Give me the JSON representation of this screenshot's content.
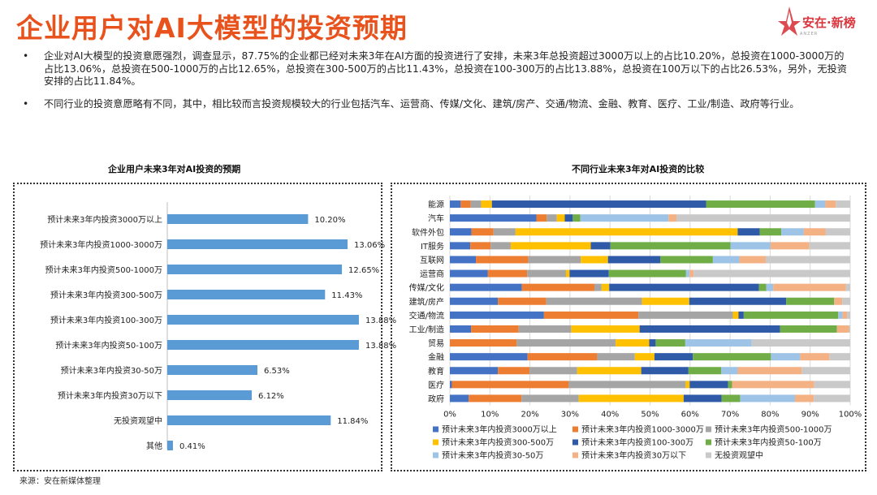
{
  "page": {
    "title": "企业用户对AI大模型的投资预期",
    "logo_text": "安在·新榜",
    "logo_sub": "ANZER",
    "source": "来源：安在新媒体整理"
  },
  "bullets": [
    "企业对AI大模型的投资意愿强烈，调查显示，87.75%的企业都已经对未来3年在AI方面的投资进行了安排，未来3年总投资超过3000万以上的占比10.20%，总投资在1000-3000万的占比13.06%，总投资在500-1000万的占比12.65%，总投资在300-500万的占比11.43%，总投资在100-300万的占比13.88%，总投资在100万以下的占比26.53%，另外，无投资安排的占比11.84%。",
    "不同行业的投资意愿略有不同，其中，相比较而言投资规模较大的行业包括汽车、运营商、传媒/文化、建筑/房产、交通/物流、金融、教育、医疗、工业/制造、政府等行业。"
  ],
  "colors": {
    "accent": "#e8531d",
    "bar_blue": "#5b9bd5",
    "series": [
      "#4472c4",
      "#ed7d31",
      "#a5a5a5",
      "#ffc000",
      "#2e5aa8",
      "#70ad47",
      "#9dc3e6",
      "#f4b183",
      "#c9c9c9"
    ]
  },
  "chart_data": [
    {
      "type": "bar",
      "orientation": "horizontal",
      "title": "企业用户未来3年对AI投资的预期",
      "categories": [
        "预计未来3年内投资3000万以上",
        "预计未来3年内投资1000-3000万",
        "预计未来3年内投资500-1000万",
        "预计未来3年内投资300-500万",
        "预计未来3年内投资100-300万",
        "预计未来3年内投资50-100万",
        "预计未来3年内投资30-50万",
        "预计未来3年内投资30万以下",
        "无投资观望中",
        "其他"
      ],
      "values": [
        10.2,
        13.06,
        12.65,
        11.43,
        13.88,
        13.88,
        6.53,
        6.12,
        11.84,
        0.41
      ],
      "labels": [
        "10.20%",
        "13.06%",
        "12.65%",
        "11.43%",
        "13.88%",
        "13.88%",
        "6.53%",
        "6.12%",
        "11.84%",
        "0.41%"
      ],
      "xlim": [
        0,
        20
      ]
    },
    {
      "type": "bar",
      "orientation": "horizontal",
      "stacked": "percent",
      "title": "不同行业未来3年对AI投资的比较",
      "categories": [
        "能源",
        "汽车",
        "软件外包",
        "IT服务",
        "互联网",
        "运营商",
        "传媒/文化",
        "建筑/房产",
        "交通/物流",
        "工业/制造",
        "贸易",
        "金融",
        "教育",
        "医疗",
        "政府"
      ],
      "xlim": [
        0,
        100
      ],
      "xticks": [
        "0%",
        "10%",
        "20%",
        "30%",
        "40%",
        "50%",
        "60%",
        "70%",
        "80%",
        "90%",
        "100%"
      ],
      "series": [
        {
          "name": "预计未来3年内投资3000万以上",
          "values": [
            2.7,
            21.6,
            5.4,
            5.1,
            6.5,
            9.5,
            18.0,
            12.0,
            23.5,
            5.3,
            0.0,
            19.4,
            12.0,
            0.5,
            4.7
          ]
        },
        {
          "name": "预计未来3年内投资1000-3000万",
          "values": [
            2.5,
            2.6,
            5.5,
            5.1,
            13.1,
            9.8,
            18.1,
            12.1,
            23.6,
            11.9,
            16.7,
            17.4,
            7.9,
            29.2,
            13.2
          ]
        },
        {
          "name": "预计未来3年内投资500-1000万",
          "values": [
            2.6,
            2.5,
            5.5,
            5.0,
            13.1,
            9.7,
            1.8,
            23.9,
            23.6,
            13.1,
            24.7,
            9.4,
            11.9,
            29.2,
            14.3
          ]
        },
        {
          "name": "预计未来3年内投资300-500万",
          "values": [
            2.7,
            2.0,
            55.5,
            20.0,
            6.8,
            0.9,
            1.9,
            11.8,
            1.4,
            17.1,
            8.4,
            4.9,
            16.0,
            1.0,
            26.2
          ]
        },
        {
          "name": "预计未来3年内投资100-300万",
          "values": [
            53.5,
            2.0,
            5.5,
            4.9,
            13.1,
            9.8,
            37.4,
            24.2,
            1.3,
            35.1,
            1.6,
            9.6,
            11.8,
            9.6,
            9.5
          ]
        },
        {
          "name": "预计未来3年内投资50-100万",
          "values": [
            27.2,
            1.9,
            5.4,
            30.0,
            13.1,
            19.3,
            1.8,
            12.0,
            23.6,
            14.2,
            7.4,
            19.5,
            8.2,
            1.0,
            4.6
          ]
        },
        {
          "name": "预计未来3年内投资30-50万",
          "values": [
            2.6,
            22.0,
            5.6,
            10.0,
            6.6,
            0.9,
            1.8,
            0.0,
            1.1,
            0.0,
            16.6,
            7.3,
            4.1,
            0.0,
            13.7
          ]
        },
        {
          "name": "预计未来3年内投资30万以下",
          "values": [
            2.6,
            2.0,
            5.5,
            9.7,
            6.6,
            1.0,
            18.1,
            2.0,
            1.1,
            3.0,
            0.0,
            7.3,
            16.0,
            20.5,
            4.7
          ]
        },
        {
          "name": "无投资观望中",
          "values": [
            3.6,
            43.4,
            6.1,
            10.2,
            21.1,
            39.1,
            1.1,
            2.0,
            0.8,
            0.3,
            24.6,
            5.2,
            12.1,
            9.0,
            9.1
          ]
        }
      ]
    }
  ]
}
